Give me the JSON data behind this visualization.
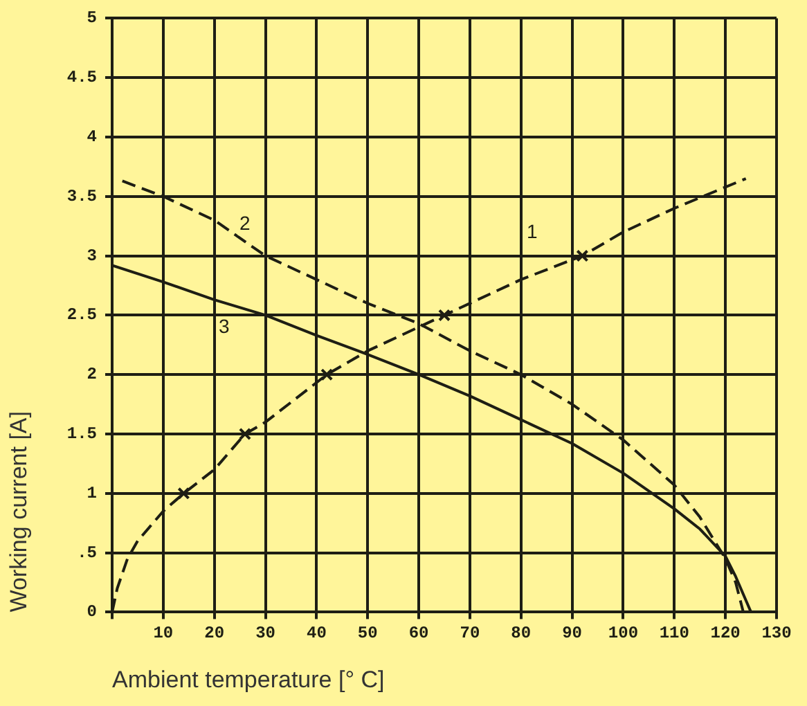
{
  "chart_data": {
    "type": "line",
    "xlabel": "Ambient temperature [° C]",
    "ylabel": "Working current [A]",
    "xlim": [
      0,
      130
    ],
    "xticks": [
      {
        "value": 0,
        "label": null
      },
      10,
      20,
      30,
      40,
      50,
      60,
      70,
      80,
      90,
      100,
      110,
      120,
      130
    ],
    "ylim": [
      0,
      5
    ],
    "yticks": [
      0,
      {
        "value": 0.5,
        "label": ".5"
      },
      1,
      1.5,
      2,
      2.5,
      3,
      3.5,
      4,
      4.5,
      5
    ],
    "grid": true,
    "legend": false,
    "series": [
      {
        "name": "1",
        "color": "#1e1e14",
        "line_style": "dashed",
        "marker": "none",
        "x": [
          0,
          1,
          3,
          5,
          10,
          14,
          20,
          26,
          30,
          42,
          50,
          60,
          65,
          80,
          92,
          100,
          110,
          124
        ],
        "values": [
          0,
          0.2,
          0.45,
          0.6,
          0.85,
          1,
          1.2,
          1.5,
          1.6,
          2,
          2.2,
          2.4,
          2.5,
          2.8,
          3,
          3.2,
          3.4,
          3.65
        ]
      },
      {
        "type": "scatter",
        "color": "#1e1e14",
        "marker": "cross",
        "x": [
          14,
          26,
          42,
          65,
          92
        ],
        "values": [
          1,
          1.5,
          2,
          2.5,
          3
        ]
      },
      {
        "name": "2",
        "color": "#1e1e14",
        "line_style": "dashed",
        "marker": "none",
        "x": [
          2,
          10,
          20,
          30,
          40,
          50,
          60,
          70,
          80,
          90,
          100,
          110,
          115,
          120,
          122,
          123.5
        ],
        "values": [
          3.63,
          3.5,
          3.3,
          3.0,
          2.8,
          2.6,
          2.43,
          2.2,
          2.0,
          1.75,
          1.45,
          1.07,
          0.8,
          0.45,
          0.25,
          0
        ]
      },
      {
        "name": "3",
        "color": "#1e1e14",
        "line_style": "solid",
        "marker": "none",
        "x": [
          0,
          10,
          20,
          30,
          40,
          50,
          60,
          70,
          80,
          90,
          100,
          110,
          115,
          120,
          122,
          124,
          125
        ],
        "values": [
          2.92,
          2.78,
          2.63,
          2.5,
          2.33,
          2.17,
          2.0,
          1.82,
          1.62,
          1.42,
          1.17,
          0.87,
          0.7,
          0.47,
          0.3,
          0.1,
          0
        ]
      }
    ]
  }
}
